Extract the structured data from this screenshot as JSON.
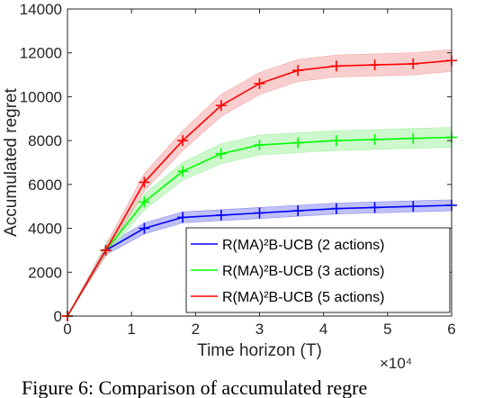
{
  "chart_data": {
    "type": "line",
    "xlabel": "Time horizon (T)",
    "ylabel": "Accumulated regret",
    "x_multiplier_label": "×10⁴",
    "xlim": [
      0,
      6
    ],
    "ylim": [
      0,
      14000
    ],
    "xticks": [
      0,
      1,
      2,
      3,
      4,
      5,
      6
    ],
    "yticks": [
      0,
      2000,
      4000,
      6000,
      8000,
      10000,
      12000,
      14000
    ],
    "grid": false,
    "legend_position": "lower-right",
    "x_values": [
      0,
      0.6,
      1.2,
      1.8,
      2.4,
      3.0,
      3.6,
      4.2,
      4.8,
      5.4,
      6.0
    ],
    "series": [
      {
        "name": "R(MA)²B-UCB (2 actions)",
        "color": "#0000ff",
        "band_color": "#8a8cf0",
        "values": [
          0,
          3000,
          4000,
          4500,
          4600,
          4700,
          4800,
          4900,
          4950,
          5000,
          5050
        ],
        "band": [
          0,
          200,
          250,
          250,
          250,
          250,
          250,
          250,
          250,
          250,
          250
        ]
      },
      {
        "name": "R(MA)²B-UCB (3 actions)",
        "color": "#00ff00",
        "band_color": "#a3f2a3",
        "values": [
          0,
          3000,
          5200,
          6600,
          7400,
          7800,
          7900,
          8000,
          8050,
          8100,
          8150
        ],
        "band": [
          0,
          250,
          350,
          400,
          450,
          450,
          450,
          450,
          450,
          450,
          450
        ]
      },
      {
        "name": "R(MA)²B-UCB (5 actions)",
        "color": "#ff0000",
        "band_color": "#f4a6a6",
        "values": [
          0,
          3000,
          6100,
          8000,
          9600,
          10600,
          11200,
          11400,
          11450,
          11500,
          11650
        ],
        "band": [
          0,
          250,
          400,
          450,
          500,
          500,
          500,
          500,
          500,
          500,
          500
        ]
      }
    ]
  },
  "caption": "Figure 6:  Comparison of accumulated regre"
}
